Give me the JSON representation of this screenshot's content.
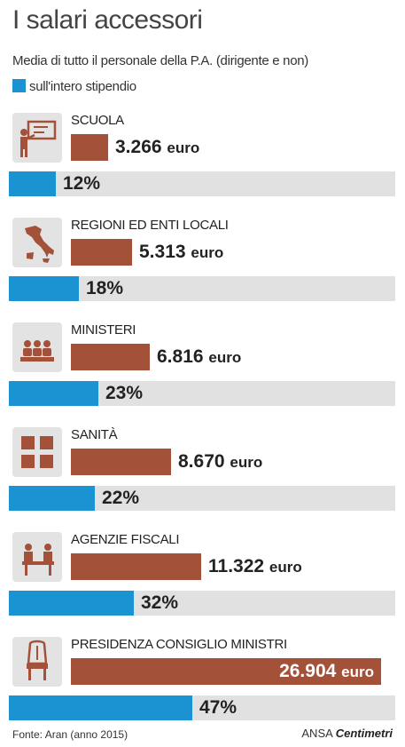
{
  "title": "I salari accessori",
  "subtitle": "Media di tutto il personale della P.A. (dirigente e non)",
  "legend_label": "sull'intero stipendio",
  "colors": {
    "value_bar": "#a4513a",
    "pct_bar": "#1b93d2",
    "track": "#e1e1e1",
    "icon_bg": "#e3e3e3"
  },
  "chart_data": {
    "type": "bar",
    "title": "I salari accessori",
    "subtitle": "Media di tutto il personale della P.A. (dirigente e non)",
    "categories": [
      "SCUOLA",
      "REGIONI ED ENTI LOCALI",
      "MINISTERI",
      "SANITÀ",
      "AGENZIE FISCALI",
      "PRESIDENZA CONSIGLIO MINISTRI"
    ],
    "series": [
      {
        "values": [
          3266,
          5313,
          6816,
          8670,
          11322,
          26904
        ],
        "labels": [
          "3.266",
          "5.313",
          "6.816",
          "8.670",
          "11.322",
          "26.904"
        ],
        "unit": "euro"
      },
      {
        "name": "sull'intero stipendio",
        "values": [
          12,
          18,
          23,
          22,
          32,
          47
        ],
        "labels": [
          "12%",
          "18%",
          "23%",
          "22%",
          "32%",
          "47%"
        ]
      }
    ],
    "icons": [
      "teacher-blackboard-icon",
      "italy-map-icon",
      "meeting-people-icon",
      "medical-cross-icon",
      "office-desk-icon",
      "throne-chair-icon"
    ]
  },
  "footer": {
    "source": "Fonte: Aran (anno 2015)",
    "brand1": "ANSA",
    "brand2": "Centimetri"
  }
}
